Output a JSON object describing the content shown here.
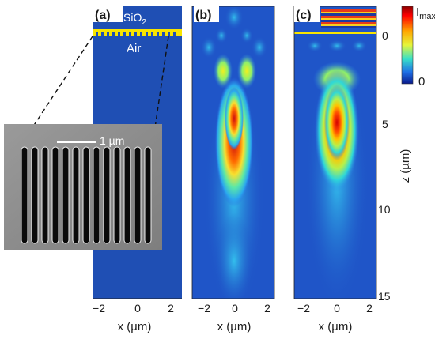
{
  "panels": [
    {
      "label": "(a)"
    },
    {
      "label": "(b)"
    },
    {
      "label": "(c)"
    }
  ],
  "panel_a": {
    "sio2_text": "SiO",
    "sio2_subscript": "2",
    "air_text": "Air",
    "scale_bar_label": "1 µm",
    "slit_count": 13,
    "colors": {
      "background_blue": "#1f4fb4",
      "grating_yellow": "#f7e400"
    }
  },
  "x_axis": {
    "label": "x (µm)",
    "ticks": [
      "−2",
      "0",
      "2"
    ]
  },
  "z_axis": {
    "label": "z (µm)",
    "ticks": [
      "0",
      "5",
      "10",
      "15"
    ]
  },
  "colorbar": {
    "max_label": "I",
    "max_subscript": "max",
    "min_label": "0",
    "colormap": "jet"
  }
}
